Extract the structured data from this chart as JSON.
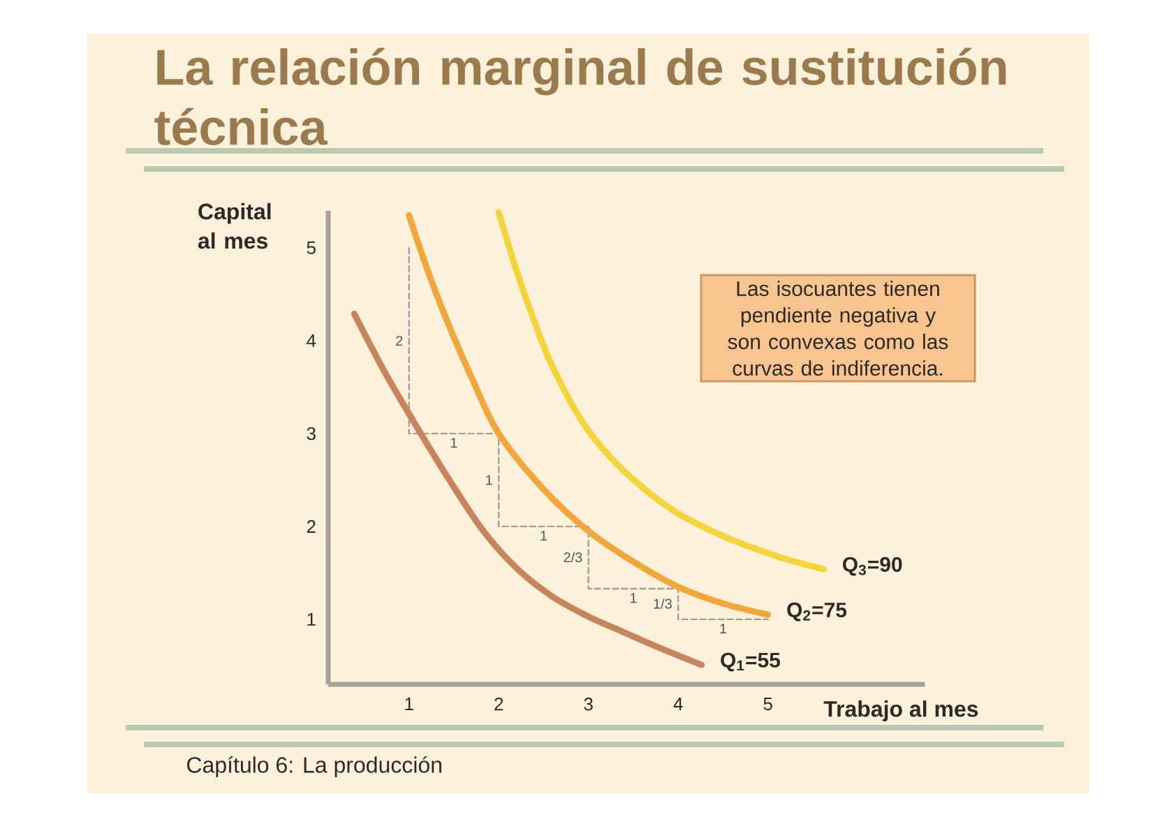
{
  "chart_data": {
    "type": "line",
    "title": "La relación marginal de sustitución técnica",
    "xlabel": "Trabajo al mes",
    "ylabel": "Capital al mes",
    "xlim": [
      0.1,
      6.75
    ],
    "ylim": [
      0.3,
      5.4
    ],
    "xticks": [
      1,
      2,
      3,
      4,
      5
    ],
    "yticks": [
      1,
      2,
      3,
      4,
      5
    ],
    "series": [
      {
        "type": "step",
        "color": "#a39e96",
        "line_style": "dashed",
        "x": [
          1,
          2,
          3,
          4,
          5
        ],
        "values": [
          5,
          3,
          2,
          1.33,
          1
        ]
      },
      {
        "name": "Q$_{1}$=55",
        "color": "#c8845c",
        "x": [
          0.39,
          0.72,
          1.07,
          1.45,
          1.83,
          2.2,
          2.59,
          3.0,
          3.35,
          3.8,
          4.26
        ],
        "values": [
          4.29,
          3.68,
          3.1,
          2.5,
          1.95,
          1.55,
          1.25,
          1.03,
          0.88,
          0.69,
          0.51
        ]
      },
      {
        "name": "Q$_{2}$=75",
        "color": "#f2a73c",
        "x": [
          1.0,
          1.2,
          1.43,
          1.69,
          2.0,
          2.5,
          3.0,
          3.5,
          4.0,
          4.5,
          5.0
        ],
        "values": [
          5.35,
          4.78,
          4.2,
          3.62,
          3.0,
          2.4,
          1.95,
          1.62,
          1.35,
          1.17,
          1.05
        ]
      },
      {
        "name": "Q$_{3}$=90",
        "color": "#f4d43a",
        "x": [
          2.0,
          2.2,
          2.4,
          2.59,
          2.95,
          3.35,
          3.9,
          4.49,
          5.1,
          5.62
        ],
        "values": [
          5.38,
          4.75,
          4.2,
          3.74,
          3.1,
          2.64,
          2.2,
          1.9,
          1.68,
          1.54
        ]
      }
    ],
    "annotations": [
      "Las isocuantes tienen pendiente negativa y son convexas como las curvas de indiferencia.",
      "Capítulo 6: La producción",
      {
        "text": "2",
        "x": 1,
        "y": 4
      },
      {
        "text": "1",
        "x": 1.5,
        "y": 3
      },
      {
        "text": "1",
        "x": 2,
        "y": 2.5
      },
      {
        "text": "1",
        "x": 2.5,
        "y": 2
      },
      {
        "text": "2/3",
        "x": 3,
        "y": 1.67
      },
      {
        "text": "1",
        "x": 3.5,
        "y": 1.33
      },
      {
        "text": "1/3",
        "x": 4,
        "y": 1.17
      },
      {
        "text": "1",
        "x": 4.5,
        "y": 1
      }
    ]
  }
}
